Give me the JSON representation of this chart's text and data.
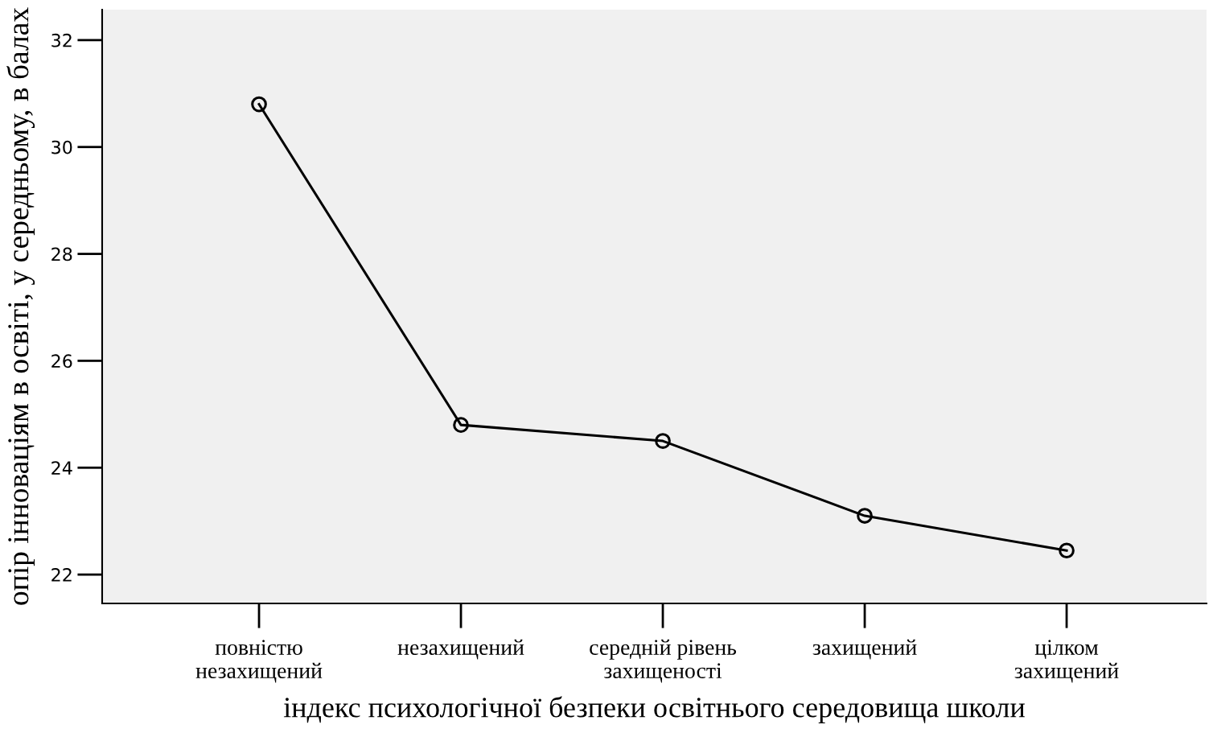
{
  "chart_data": {
    "type": "line",
    "xlabel": "індекс психологічної безпеки освітнього середовища школи",
    "ylabel": "опір інноваціям в освіті, у середньому, в балах",
    "categories": [
      "повністю\nнезахищений",
      "незахищений",
      "середній рівень\nзахищеності",
      "захищений",
      "цілком\nзахищений"
    ],
    "series": [
      {
        "color": "#000000",
        "values": [
          30.8,
          24.8,
          24.5,
          23.1,
          22.45
        ]
      }
    ],
    "ylim": [
      21.46,
      32.57
    ],
    "yticks": [
      22,
      24,
      26,
      28,
      30,
      32
    ],
    "grid": false,
    "legend": false,
    "marker": "circle",
    "line_style": "solid"
  }
}
